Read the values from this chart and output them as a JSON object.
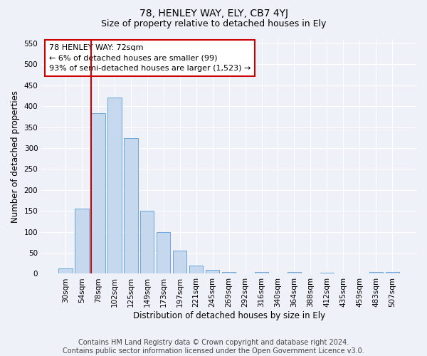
{
  "title": "78, HENLEY WAY, ELY, CB7 4YJ",
  "subtitle": "Size of property relative to detached houses in Ely",
  "xlabel": "Distribution of detached houses by size in Ely",
  "ylabel": "Number of detached properties",
  "categories": [
    "30sqm",
    "54sqm",
    "78sqm",
    "102sqm",
    "125sqm",
    "149sqm",
    "173sqm",
    "197sqm",
    "221sqm",
    "245sqm",
    "269sqm",
    "292sqm",
    "316sqm",
    "340sqm",
    "364sqm",
    "388sqm",
    "412sqm",
    "435sqm",
    "459sqm",
    "483sqm",
    "507sqm"
  ],
  "bar_values": [
    13,
    155,
    383,
    420,
    323,
    150,
    100,
    55,
    19,
    10,
    5,
    0,
    5,
    0,
    4,
    0,
    3,
    1,
    0,
    4,
    4
  ],
  "bar_color": "#c5d8ed",
  "bar_edge_color": "#5b9bd5",
  "vline_color": "#cc0000",
  "annotation_text": "78 HENLEY WAY: 72sqm\n← 6% of detached houses are smaller (99)\n93% of semi-detached houses are larger (1,523) →",
  "annotation_box_color": "#ffffff",
  "annotation_box_edge_color": "#cc0000",
  "ylim": [
    0,
    560
  ],
  "yticks": [
    0,
    50,
    100,
    150,
    200,
    250,
    300,
    350,
    400,
    450,
    500,
    550
  ],
  "footer_text": "Contains HM Land Registry data © Crown copyright and database right 2024.\nContains public sector information licensed under the Open Government Licence v3.0.",
  "background_color": "#eef2f8",
  "plot_bg_color": "#eef2f8",
  "grid_color": "#ffffff",
  "title_fontsize": 10,
  "subtitle_fontsize": 9,
  "axis_label_fontsize": 8.5,
  "tick_fontsize": 7.5,
  "annotation_fontsize": 8,
  "footer_fontsize": 7
}
